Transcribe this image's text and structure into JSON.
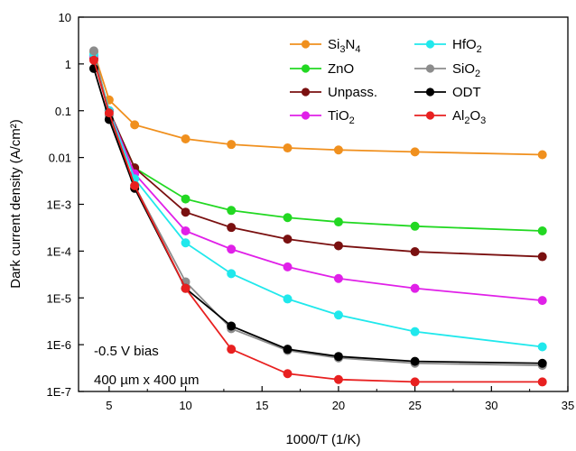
{
  "chart_data": {
    "type": "line",
    "xlabel": "1000/T (1/K)",
    "ylabel": "Dark current density (A/cm²)",
    "xlim": [
      3,
      35
    ],
    "ylim": [
      1e-07,
      10
    ],
    "y_scale": "log",
    "x_ticks": [
      5,
      10,
      15,
      20,
      25,
      30,
      35
    ],
    "x_tick_labels": [
      "5",
      "10",
      "15",
      "20",
      "25",
      "30",
      "35"
    ],
    "y_ticks": [
      1e-07,
      1e-06,
      1e-05,
      0.0001,
      0.001,
      0.01,
      0.1,
      1,
      10
    ],
    "y_tick_labels": [
      "1E-7",
      "1E-6",
      "1E-5",
      "1E-4",
      "1E-3",
      "0.01",
      "0.1",
      "1",
      "10"
    ],
    "grid": false,
    "legend_position": "top-right",
    "annotations": [
      "-0.5 V bias",
      "400 µm x 400 µm"
    ],
    "x": [
      4.0,
      5.0,
      6.67,
      10.0,
      12.99,
      16.67,
      20.0,
      25.0,
      33.33
    ],
    "series": [
      {
        "name": "Si3N4",
        "name_parts": [
          [
            "Si",
            "n"
          ],
          [
            "3",
            "sub"
          ],
          [
            "N",
            "n"
          ],
          [
            "4",
            "sub"
          ]
        ],
        "color": "#f0901e",
        "values": [
          1.8,
          0.17,
          0.05,
          0.025,
          0.019,
          0.016,
          0.0145,
          0.0132,
          0.0115
        ]
      },
      {
        "name": "ZnO",
        "name_parts": [
          [
            "ZnO",
            "n"
          ]
        ],
        "color": "#22d822",
        "values": [
          1.5,
          0.1,
          0.006,
          0.0013,
          0.00074,
          0.00052,
          0.00042,
          0.00034,
          0.00027
        ]
      },
      {
        "name": "Unpass.",
        "name_parts": [
          [
            "Unpass.",
            "n"
          ]
        ],
        "color": "#7a1010",
        "values": [
          1.3,
          0.1,
          0.006,
          0.00068,
          0.00032,
          0.00018,
          0.00013,
          9.7e-05,
          7.6e-05
        ]
      },
      {
        "name": "TiO2",
        "name_parts": [
          [
            "TiO",
            "n"
          ],
          [
            "2",
            "sub"
          ]
        ],
        "color": "#e020e8",
        "values": [
          1.5,
          0.1,
          0.0045,
          0.00027,
          0.00011,
          4.6e-05,
          2.6e-05,
          1.6e-05,
          8.8e-06
        ]
      },
      {
        "name": "HfO2",
        "name_parts": [
          [
            "HfO",
            "n"
          ],
          [
            "2",
            "sub"
          ]
        ],
        "color": "#20e8ec",
        "values": [
          1.6,
          0.1,
          0.0035,
          0.00015,
          3.3e-05,
          9.5e-06,
          4.3e-06,
          1.9e-06,
          9e-07
        ]
      },
      {
        "name": "SiO2",
        "name_parts": [
          [
            "SiO",
            "n"
          ],
          [
            "2",
            "sub"
          ]
        ],
        "color": "#8c8c8c",
        "values": [
          1.9,
          0.08,
          0.0025,
          2.2e-05,
          2.2e-06,
          7.5e-07,
          5.2e-07,
          4e-07,
          3.6e-07
        ]
      },
      {
        "name": "ODT",
        "name_parts": [
          [
            "ODT",
            "n"
          ]
        ],
        "color": "#000000",
        "values": [
          0.8,
          0.065,
          0.0022,
          1.6e-05,
          2.5e-06,
          8e-07,
          5.6e-07,
          4.4e-07,
          4e-07
        ]
      },
      {
        "name": "Al2O3",
        "name_parts": [
          [
            "Al",
            "n"
          ],
          [
            "2",
            "sub"
          ],
          [
            "O",
            "n"
          ],
          [
            "3",
            "sub"
          ]
        ],
        "color": "#e82020",
        "values": [
          1.2,
          0.09,
          0.0025,
          1.6e-05,
          8e-07,
          2.4e-07,
          1.8e-07,
          1.6e-07,
          1.6e-07
        ]
      }
    ]
  }
}
